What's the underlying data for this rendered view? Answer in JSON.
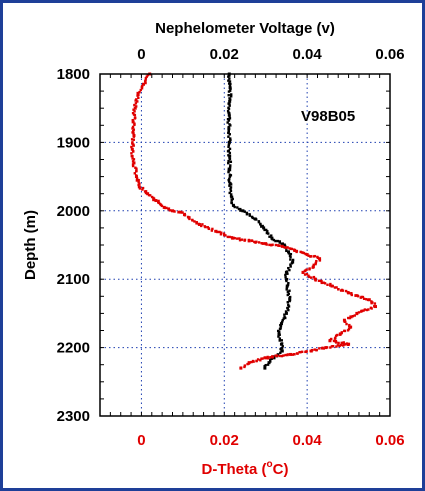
{
  "chart_data": {
    "type": "scatter",
    "annotation": "V98B05",
    "ylabel": "Depth (m)",
    "ylim": [
      1800,
      2300
    ],
    "yticks": [
      "1800",
      "1900",
      "2000",
      "2100",
      "2200",
      "2300"
    ],
    "ytick_values": [
      1800,
      1900,
      2000,
      2100,
      2200,
      2300
    ],
    "y_reversed": true,
    "top_axis": {
      "label": "Nephelometer Voltage (v)",
      "xlim": [
        -0.01,
        0.06
      ],
      "ticks": [
        "0",
        "0.02",
        "0.04",
        "0.06"
      ],
      "tick_values": [
        0,
        0.02,
        0.04,
        0.06
      ],
      "color": "#000000"
    },
    "bottom_axis": {
      "label_prefix": "D-Theta (",
      "label_degree": "o",
      "label_suffix": "C)",
      "xlim": [
        -0.01,
        0.06
      ],
      "ticks": [
        "0",
        "0.02",
        "0.04",
        "0.06"
      ],
      "tick_values": [
        0,
        0.02,
        0.04,
        0.06
      ],
      "color": "#e00000"
    },
    "grid": true,
    "series": [
      {
        "axis": "top",
        "color": "#000000",
        "points": [
          [
            0.0212,
            1800
          ],
          [
            0.0214,
            1820
          ],
          [
            0.0213,
            1840
          ],
          [
            0.0212,
            1860
          ],
          [
            0.0211,
            1880
          ],
          [
            0.0212,
            1900
          ],
          [
            0.0213,
            1920
          ],
          [
            0.0213,
            1940
          ],
          [
            0.0214,
            1960
          ],
          [
            0.0218,
            1980
          ],
          [
            0.0222,
            1992
          ],
          [
            0.0245,
            2000
          ],
          [
            0.0275,
            2012
          ],
          [
            0.0295,
            2025
          ],
          [
            0.0315,
            2040
          ],
          [
            0.0345,
            2050
          ],
          [
            0.0355,
            2060
          ],
          [
            0.0365,
            2075
          ],
          [
            0.035,
            2090
          ],
          [
            0.0352,
            2110
          ],
          [
            0.0358,
            2130
          ],
          [
            0.035,
            2150
          ],
          [
            0.0338,
            2165
          ],
          [
            0.0332,
            2180
          ],
          [
            0.0338,
            2195
          ],
          [
            0.034,
            2205
          ],
          [
            0.032,
            2215
          ],
          [
            0.0308,
            2222
          ],
          [
            0.0298,
            2230
          ]
        ]
      },
      {
        "axis": "bottom",
        "color": "#e00000",
        "points": [
          [
            0.002,
            1800
          ],
          [
            0.0005,
            1815
          ],
          [
            -0.0008,
            1830
          ],
          [
            -0.0015,
            1850
          ],
          [
            -0.002,
            1870
          ],
          [
            -0.0018,
            1890
          ],
          [
            -0.0022,
            1910
          ],
          [
            -0.0018,
            1930
          ],
          [
            -0.0012,
            1950
          ],
          [
            -0.0005,
            1965
          ],
          [
            0.0015,
            1975
          ],
          [
            0.0035,
            1985
          ],
          [
            0.0055,
            1995
          ],
          [
            0.0075,
            2000
          ],
          [
            0.0095,
            2002
          ],
          [
            0.0115,
            2010
          ],
          [
            0.014,
            2020
          ],
          [
            0.018,
            2030
          ],
          [
            0.022,
            2040
          ],
          [
            0.026,
            2044
          ],
          [
            0.03,
            2048
          ],
          [
            0.034,
            2052
          ],
          [
            0.037,
            2058
          ],
          [
            0.04,
            2064
          ],
          [
            0.043,
            2070
          ],
          [
            0.0415,
            2082
          ],
          [
            0.039,
            2090
          ],
          [
            0.042,
            2100
          ],
          [
            0.046,
            2110
          ],
          [
            0.05,
            2120
          ],
          [
            0.055,
            2130
          ],
          [
            0.0565,
            2140
          ],
          [
            0.052,
            2150
          ],
          [
            0.049,
            2160
          ],
          [
            0.0505,
            2170
          ],
          [
            0.048,
            2180
          ],
          [
            0.0455,
            2190
          ],
          [
            0.05,
            2195
          ],
          [
            0.0445,
            2200
          ],
          [
            0.041,
            2205
          ],
          [
            0.036,
            2210
          ],
          [
            0.03,
            2215
          ],
          [
            0.026,
            2222
          ],
          [
            0.024,
            2230
          ]
        ]
      }
    ]
  }
}
